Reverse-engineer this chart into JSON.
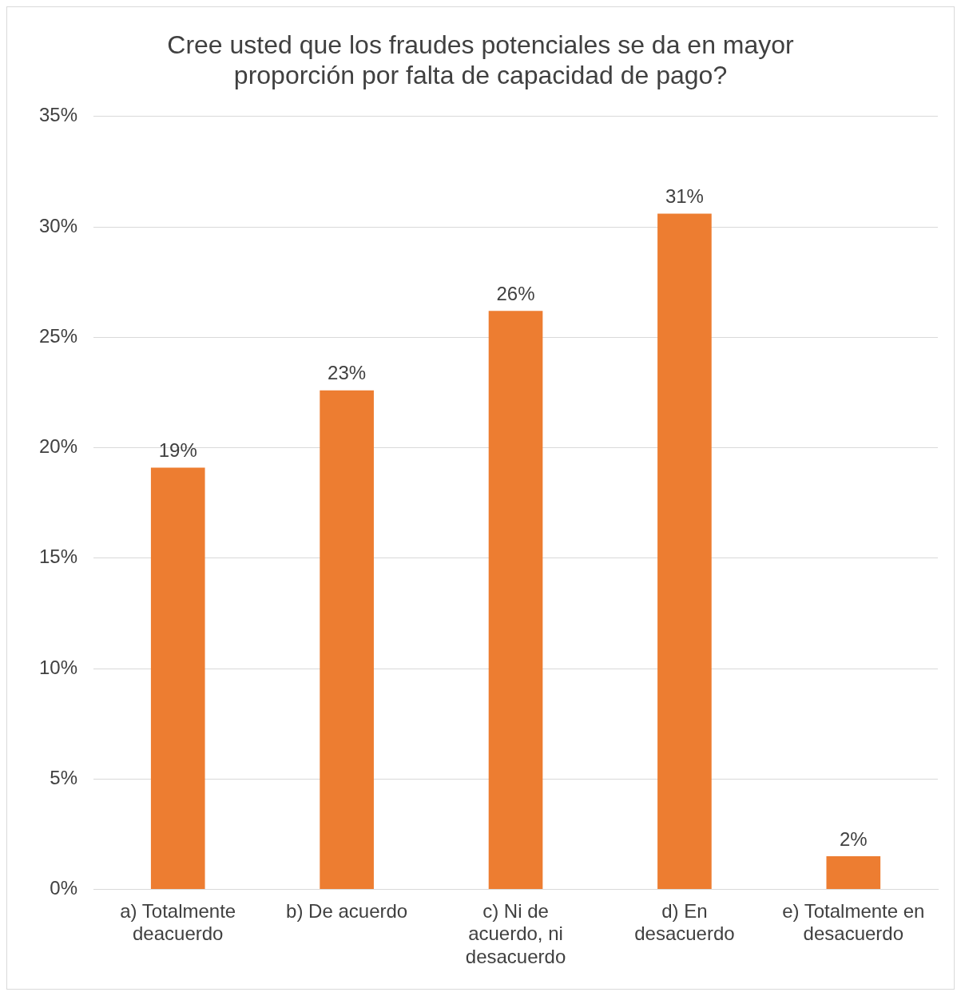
{
  "chart_data": {
    "type": "bar",
    "title": "Cree usted que los fraudes potenciales se da en mayor proporción por falta de capacidad de pago?",
    "categories": [
      "a) Totalmente deacuerdo",
      "b) De acuerdo",
      "c) Ni de acuerdo, ni desacuerdo",
      "d) En desacuerdo",
      "e) Totalmente en desacuerdo"
    ],
    "values": [
      19.1,
      22.6,
      26.2,
      30.6,
      1.5
    ],
    "value_labels": [
      "19%",
      "23%",
      "26%",
      "31%",
      "2%"
    ],
    "color": "#ed7d31",
    "ylim": [
      0,
      35
    ],
    "yticks": [
      {
        "value": 0,
        "label": "0%"
      },
      {
        "value": 5,
        "label": "5%"
      },
      {
        "value": 10,
        "label": "10%"
      },
      {
        "value": 15,
        "label": "15%"
      },
      {
        "value": 20,
        "label": "20%"
      },
      {
        "value": 25,
        "label": "25%"
      },
      {
        "value": 30,
        "label": "30%"
      },
      {
        "value": 35,
        "label": "35%"
      }
    ],
    "grid": "y",
    "legend": false
  }
}
